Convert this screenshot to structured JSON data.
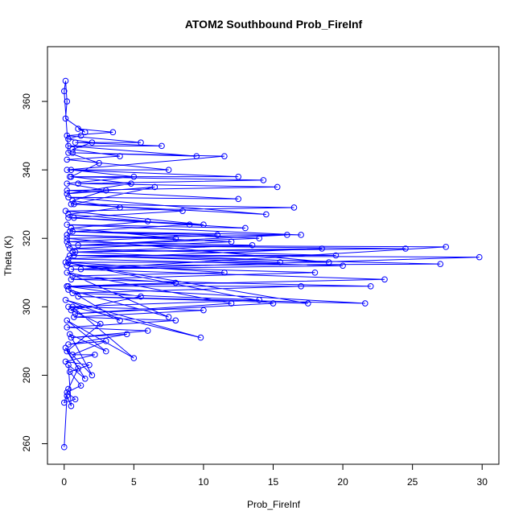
{
  "chart_data": {
    "type": "line",
    "title": "ATOM2 Southbound Prob_FireInf",
    "x_label": "Prob_FireInf",
    "y_label": "Theta (K)",
    "xlim": [
      -1.2,
      31.2
    ],
    "ylim": [
      254,
      376
    ],
    "xticks": [
      0,
      5,
      10,
      15,
      20,
      25,
      30
    ],
    "yticks": [
      260,
      280,
      300,
      320,
      340,
      360
    ],
    "markers": true,
    "x": [
      0,
      0.2,
      0.5,
      0.3,
      1.5,
      0.1,
      2,
      0.4,
      3,
      0.2,
      5,
      0.6,
      9.8,
      0.1,
      4,
      0.3,
      7.5,
      0.2,
      12,
      0.8,
      15,
      0.1,
      17.5,
      1,
      21.6,
      0.3,
      22,
      0.5,
      18,
      0.2,
      27,
      0.4,
      29.8,
      1.2,
      27.4,
      0.3,
      24.5,
      0.6,
      19,
      0.2,
      16,
      1,
      14,
      0.4,
      17,
      0.2,
      13,
      0.7,
      10,
      0.1,
      16.5,
      0.5,
      14.5,
      0.3,
      12.5,
      0.2,
      15.3,
      1,
      14.3,
      0.4,
      12.5,
      0.2,
      11.5,
      0.6,
      9.5,
      0.3,
      7,
      0.8,
      5.5,
      0.2,
      3.5,
      1,
      1.5,
      0.1,
      0.2,
      0.1,
      0,
      0.3,
      2.5,
      0.5,
      4.8,
      0.2,
      6.5,
      0.7,
      8.5,
      0.3,
      9,
      0.6,
      11,
      0.2,
      13.5,
      0.8,
      18.5,
      0.3,
      20,
      0.5,
      23,
      0.2,
      17,
      0.6,
      14,
      0.3,
      10,
      0.7,
      8,
      0.2,
      6,
      0.5,
      4.5,
      0.3,
      3,
      0.6,
      2.2,
      0.1,
      1.8,
      0.4,
      1.2,
      0.2,
      0.8,
      0,
      0.3,
      1,
      0.2,
      2.6,
      0.5,
      5.5,
      0.2,
      8,
      0.6,
      11.5,
      0.3,
      15.5,
      0.7,
      19.5,
      0.4,
      12,
      0.2,
      8,
      0.5,
      6,
      0.3,
      4,
      0.6,
      3,
      0.2,
      5,
      0.5,
      7.5,
      0.2,
      4,
      0.6,
      2,
      0.3,
      1.2
    ],
    "series": [
      {
        "color": "#0000ff",
        "values": [
          259,
          274,
          271,
          283,
          279,
          288,
          280,
          292,
          287,
          296,
          285,
          300,
          291,
          302,
          296,
          305,
          297,
          310,
          301,
          298,
          301,
          313,
          301,
          303,
          301,
          306,
          306,
          308,
          310,
          312,
          312.5,
          315,
          314.5,
          311,
          317.5,
          318,
          317,
          316,
          313,
          320,
          321,
          318,
          320,
          322,
          321,
          324,
          323,
          326,
          324,
          328,
          329,
          330,
          327,
          332,
          331.5,
          334,
          335,
          336,
          337,
          338,
          338,
          340,
          344,
          345,
          344,
          347,
          347,
          348,
          348,
          350,
          351,
          352,
          351,
          355,
          360,
          366,
          363,
          345,
          342,
          338,
          336,
          333,
          335,
          330,
          328,
          326,
          324,
          322,
          321,
          319,
          318,
          316,
          317,
          314,
          312,
          311,
          308,
          306,
          306,
          304,
          302,
          300,
          299,
          297,
          296,
          294,
          293,
          291,
          292,
          289,
          290,
          286,
          286,
          284,
          283,
          281,
          277,
          275,
          273,
          272,
          276,
          282,
          287,
          295,
          299,
          303,
          306,
          307,
          309,
          310,
          313,
          313,
          315,
          315,
          317,
          319,
          321,
          320,
          323,
          325,
          327,
          329,
          331,
          334,
          336,
          338,
          340,
          340,
          343,
          344,
          346,
          348,
          349,
          350
        ]
      }
    ]
  }
}
